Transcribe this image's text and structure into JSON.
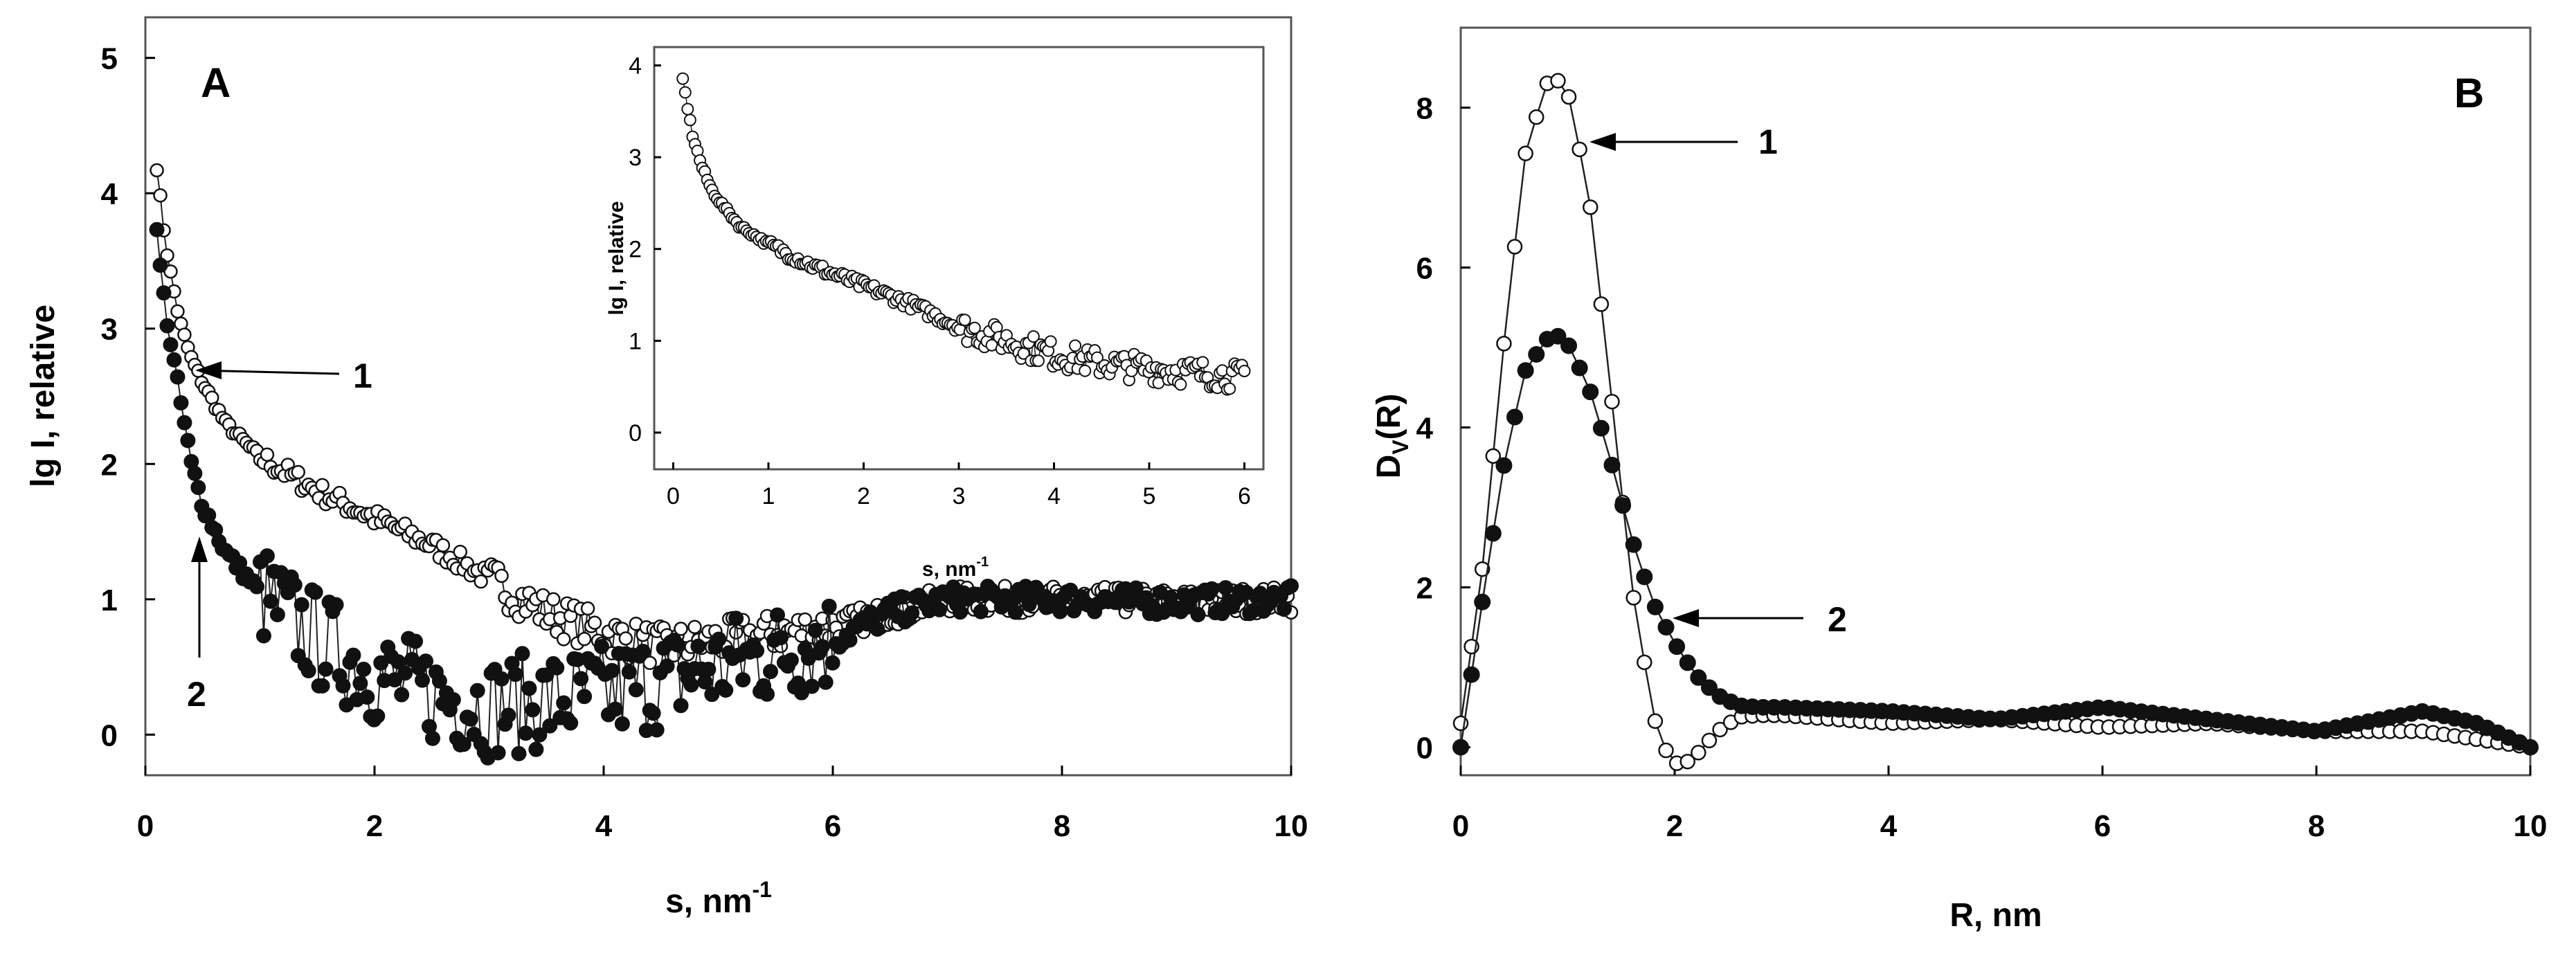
{
  "chart_data": [
    {
      "type": "scatter",
      "panel_label": "A",
      "xlabel": "s, nm",
      "xlabel_sup": "-1",
      "ylabel": "lg I, relative",
      "xlim": [
        0,
        10
      ],
      "ylim": [
        -0.3,
        5.3
      ],
      "xticks": [
        "0",
        "2",
        "4",
        "6",
        "8",
        "10"
      ],
      "yticks": [
        "0",
        "1",
        "2",
        "3",
        "4",
        "5"
      ],
      "grid": false,
      "legend": "none",
      "series": [
        {
          "label": "1",
          "marker": "open-circle",
          "x": [
            0.1,
            0.15,
            0.2,
            0.3,
            0.4,
            0.5,
            0.7,
            1.0,
            1.5,
            2.0,
            2.5,
            3.0,
            3.5,
            4.0,
            4.5,
            5.0,
            5.5,
            6.0,
            6.5,
            7.0,
            8.0,
            9.0,
            10.0
          ],
          "y": [
            4.2,
            3.8,
            3.5,
            3.05,
            2.78,
            2.6,
            2.3,
            2.05,
            1.8,
            1.6,
            1.4,
            1.15,
            0.9,
            0.75,
            0.65,
            0.7,
            0.75,
            0.8,
            0.9,
            1.0,
            1.0,
            0.98,
            1.0
          ]
        },
        {
          "label": "2",
          "marker": "filled-circle",
          "x": [
            0.1,
            0.15,
            0.2,
            0.3,
            0.4,
            0.5,
            0.7,
            1.0,
            1.5,
            2.0,
            2.5,
            3.0,
            3.5,
            4.0,
            4.5,
            5.0,
            5.5,
            6.0,
            6.5,
            7.0,
            8.0,
            9.0,
            10.0
          ],
          "y": [
            3.7,
            3.3,
            3.0,
            2.5,
            2.0,
            1.7,
            1.35,
            1.05,
            0.7,
            0.45,
            0.3,
            0.2,
            0.25,
            0.3,
            0.4,
            0.5,
            0.6,
            0.7,
            0.9,
            1.0,
            1.0,
            0.98,
            1.0
          ]
        }
      ],
      "annotations": [
        {
          "text": "1",
          "points_to_x": 0.35,
          "points_to_y": 2.85
        },
        {
          "text": "2",
          "points_to_x": 0.4,
          "points_to_y": 1.6
        }
      ],
      "inset": {
        "type": "scatter",
        "xlabel": "s, nm",
        "xlabel_sup": "-1",
        "ylabel": "lg I, relative",
        "xlim": [
          -0.2,
          6.2
        ],
        "ylim": [
          -0.4,
          4.2
        ],
        "xticks": [
          "0",
          "1",
          "2",
          "3",
          "4",
          "5",
          "6"
        ],
        "yticks": [
          "0",
          "1",
          "2",
          "3",
          "4"
        ],
        "marker": "open-circle",
        "x": [
          0.1,
          0.15,
          0.2,
          0.3,
          0.4,
          0.5,
          0.7,
          1.0,
          1.5,
          2.0,
          2.5,
          3.0,
          3.5,
          4.0,
          4.5,
          5.0,
          5.5,
          6.0
        ],
        "y": [
          3.85,
          3.55,
          3.25,
          2.9,
          2.65,
          2.5,
          2.25,
          2.05,
          1.8,
          1.6,
          1.4,
          1.15,
          1.0,
          0.85,
          0.75,
          0.7,
          0.65,
          0.6
        ]
      }
    },
    {
      "type": "line",
      "panel_label": "B",
      "xlabel": "R, nm",
      "ylabel": "D",
      "ylabel_sub": "V",
      "ylabel_tail": "(R)",
      "xlim": [
        0,
        10
      ],
      "ylim": [
        -0.35,
        9.0
      ],
      "xticks": [
        "0",
        "2",
        "4",
        "6",
        "8",
        "10"
      ],
      "yticks": [
        "0",
        "2",
        "4",
        "6",
        "8"
      ],
      "grid": false,
      "legend": "none",
      "series": [
        {
          "label": "1",
          "marker": "open-circle",
          "x": [
            0,
            0.2,
            0.4,
            0.6,
            0.8,
            0.9,
            1.0,
            1.2,
            1.4,
            1.6,
            1.8,
            1.9,
            2.0,
            2.1,
            2.2,
            2.4,
            2.6,
            2.8,
            3.0,
            4.0,
            5.0,
            6.0,
            7.0,
            8.0,
            9.0,
            9.5,
            10.0
          ],
          "y": [
            0.3,
            2.2,
            5.0,
            7.4,
            8.3,
            8.35,
            8.2,
            6.9,
            4.5,
            2.0,
            0.4,
            0.0,
            -0.2,
            -0.2,
            -0.1,
            0.2,
            0.38,
            0.4,
            0.4,
            0.3,
            0.35,
            0.25,
            0.3,
            0.2,
            0.2,
            0.1,
            0.0
          ]
        },
        {
          "label": "2",
          "marker": "filled-circle",
          "x": [
            0,
            0.2,
            0.4,
            0.6,
            0.8,
            0.9,
            1.0,
            1.2,
            1.4,
            1.6,
            1.8,
            2.0,
            2.2,
            2.4,
            2.6,
            2.8,
            3.0,
            4.0,
            5.0,
            6.0,
            7.0,
            8.0,
            9.0,
            9.5,
            10.0
          ],
          "y": [
            0.0,
            1.8,
            3.5,
            4.7,
            5.1,
            5.15,
            5.05,
            4.5,
            3.6,
            2.6,
            1.8,
            1.3,
            0.9,
            0.65,
            0.52,
            0.5,
            0.5,
            0.45,
            0.35,
            0.5,
            0.35,
            0.2,
            0.45,
            0.3,
            0.0
          ]
        }
      ],
      "annotations": [
        {
          "text": "1",
          "points_to_x": 1.25,
          "points_to_y": 7.6
        },
        {
          "text": "2",
          "points_to_x": 2.05,
          "points_to_y": 1.65
        }
      ]
    }
  ]
}
